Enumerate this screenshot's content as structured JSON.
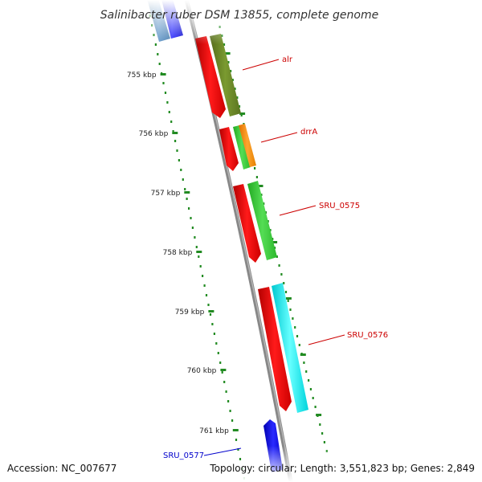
{
  "title": "Salinibacter ruber DSM 13855, complete genome",
  "accession": "Accession: NC_007677",
  "topology": "Topology: circular; Length: 3,551,823 bp; Genes: 2,849",
  "ruler": {
    "ticks": [
      "755 kbp",
      "756 kbp",
      "757 kbp",
      "758 kbp",
      "759 kbp",
      "760 kbp",
      "761 kbp"
    ]
  },
  "genes": [
    {
      "label": "alr",
      "color": "#cc0000"
    },
    {
      "label": "drrA",
      "color": "#cc0000"
    },
    {
      "label": "SRU_0575",
      "color": "#cc0000"
    },
    {
      "label": "SRU_0576",
      "color": "#cc0000"
    },
    {
      "label": "SRU_0577",
      "color": "#0000cc"
    }
  ],
  "colors": {
    "cds": "#ff0000",
    "olive": "#6b8e23",
    "green": "#33cc33",
    "orange": "#ff8c00",
    "cyan": "#00e5ee",
    "blue": "#0000ee",
    "steelblue": "#4682b4",
    "backbone": "#888888",
    "dots": "#228b22"
  }
}
